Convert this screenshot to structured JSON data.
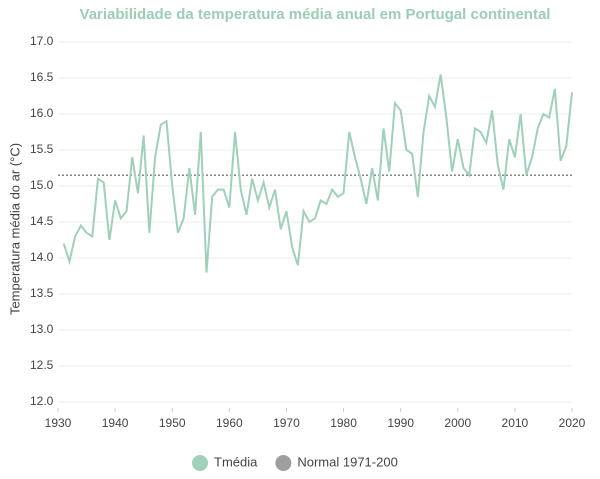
{
  "chart_data": {
    "type": "line",
    "title": "Variabilidade da temperatura média anual em Portugal continental",
    "ylabel": "Temperatura média do ar (°C)",
    "x": [
      1931,
      1932,
      1933,
      1934,
      1935,
      1936,
      1937,
      1938,
      1939,
      1940,
      1941,
      1942,
      1943,
      1944,
      1945,
      1946,
      1947,
      1948,
      1949,
      1950,
      1951,
      1952,
      1953,
      1954,
      1955,
      1956,
      1957,
      1958,
      1959,
      1960,
      1961,
      1962,
      1963,
      1964,
      1965,
      1966,
      1967,
      1968,
      1969,
      1970,
      1971,
      1972,
      1973,
      1974,
      1975,
      1976,
      1977,
      1978,
      1979,
      1980,
      1981,
      1982,
      1983,
      1984,
      1985,
      1986,
      1987,
      1988,
      1989,
      1990,
      1991,
      1992,
      1993,
      1994,
      1995,
      1996,
      1997,
      1998,
      1999,
      2000,
      2001,
      2002,
      2003,
      2004,
      2005,
      2006,
      2007,
      2008,
      2009,
      2010,
      2011,
      2012,
      2013,
      2014,
      2015,
      2016,
      2017,
      2018,
      2019,
      2020
    ],
    "series": [
      {
        "name": "Tmédia",
        "color": "#9fd0b9",
        "values": [
          14.2,
          13.95,
          14.3,
          14.45,
          14.35,
          14.3,
          15.1,
          15.05,
          14.25,
          14.8,
          14.55,
          14.65,
          15.4,
          14.9,
          15.7,
          14.35,
          15.4,
          15.85,
          15.9,
          15.0,
          14.35,
          14.55,
          15.25,
          14.6,
          15.75,
          13.8,
          14.85,
          14.95,
          14.95,
          14.7,
          15.75,
          14.95,
          14.6,
          15.1,
          14.8,
          15.05,
          14.7,
          14.95,
          14.4,
          14.65,
          14.15,
          13.9,
          14.65,
          14.5,
          14.55,
          14.8,
          14.75,
          14.95,
          14.85,
          14.9,
          15.75,
          15.4,
          15.1,
          14.75,
          15.25,
          14.8,
          15.8,
          15.2,
          16.15,
          16.05,
          15.5,
          15.45,
          14.85,
          15.75,
          16.25,
          16.1,
          16.55,
          15.95,
          15.2,
          15.65,
          15.25,
          15.15,
          15.8,
          15.75,
          15.6,
          16.05,
          15.3,
          14.95,
          15.65,
          15.4,
          16.0,
          15.15,
          15.4,
          15.8,
          16.0,
          15.95,
          16.35,
          15.35,
          15.55,
          16.3
        ]
      }
    ],
    "reference": {
      "name": "Normal 1971-200",
      "value": 15.15,
      "color": "#9e9e9e"
    },
    "xlim": [
      1930,
      2020
    ],
    "xticks": [
      1930,
      1940,
      1950,
      1960,
      1970,
      1980,
      1990,
      2000,
      2010,
      2020
    ],
    "ylim": [
      12,
      17
    ],
    "yticks": [
      {
        "value": 12,
        "label": "12.0"
      },
      {
        "value": 12.5,
        "label": "12.5"
      },
      {
        "value": 13,
        "label": "13.0"
      },
      {
        "value": 13.5,
        "label": "13.5"
      },
      {
        "value": 14,
        "label": "14.0"
      },
      {
        "value": 14.5,
        "label": "14.5"
      },
      {
        "value": 15,
        "label": "15.0"
      },
      {
        "value": 15.5,
        "label": "15.5"
      },
      {
        "value": 16,
        "label": "16.0"
      },
      {
        "value": 16.5,
        "label": "16.5"
      },
      {
        "value": 17,
        "label": "17.0"
      }
    ],
    "grid": true
  }
}
